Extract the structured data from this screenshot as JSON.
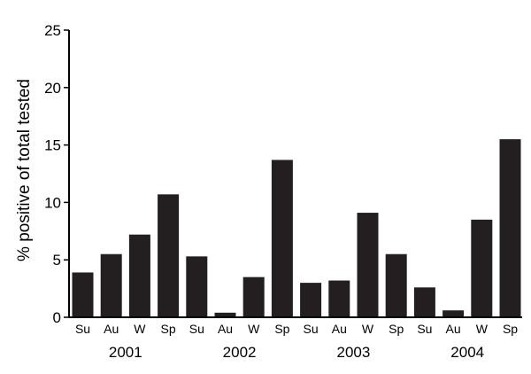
{
  "chart_data": {
    "type": "bar",
    "title": "",
    "ylabel": "% positive of total tested",
    "xlabel": "",
    "ylim": [
      0,
      25
    ],
    "yticks": [
      0,
      5,
      10,
      15,
      20,
      25
    ],
    "grid": false,
    "bar_color": "#231f20",
    "categories": [
      "Su",
      "Au",
      "W",
      "Sp",
      "Su",
      "Au",
      "W",
      "Sp",
      "Su",
      "Au",
      "W",
      "Sp",
      "Su",
      "Au",
      "W",
      "Sp"
    ],
    "values": [
      3.9,
      5.5,
      7.2,
      10.7,
      5.3,
      0.4,
      3.5,
      13.7,
      3.0,
      3.2,
      9.1,
      5.5,
      2.6,
      0.6,
      8.5,
      15.5
    ],
    "groups": [
      {
        "label": "2001",
        "start": 0,
        "end": 3
      },
      {
        "label": "2002",
        "start": 4,
        "end": 7
      },
      {
        "label": "2003",
        "start": 8,
        "end": 11
      },
      {
        "label": "2004",
        "start": 12,
        "end": 15
      }
    ]
  }
}
